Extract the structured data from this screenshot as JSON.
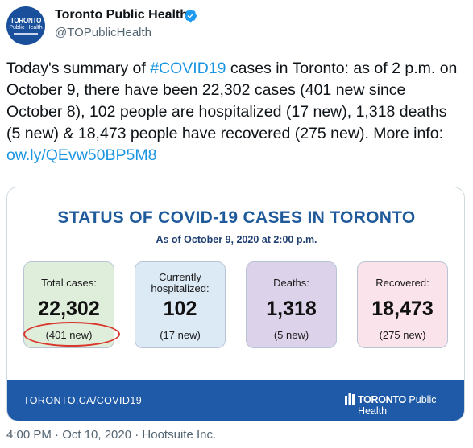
{
  "account": {
    "display_name": "Toronto Public Health",
    "handle": "@TOPublicHealth",
    "avatar_text_1": "TORONTO",
    "avatar_text_2": "Public Health"
  },
  "tweet": {
    "text_1": "Today's summary of ",
    "hashtag": "#COVID19",
    "text_2": " cases in Toronto: as of 2 p.m. on October 9, there have been 22,302 cases (401 new since October 8), 102 people are hospitalized (17 new), 1,318 deaths (5 new) & 18,473 people have recovered (275 new). More info: ",
    "link": "ow.ly/QEvw50BP5M8"
  },
  "card": {
    "title": "STATUS OF COVID-19 CASES IN TORONTO",
    "subtitle": "As of October 9, 2020 at 2:00 p.m.",
    "stats": [
      {
        "label": "Total cases:",
        "value": "22,302",
        "new": "(401 new)",
        "color": "#dfeedb"
      },
      {
        "label": "Currently hospitalized:",
        "value": "102",
        "new": "(17 new)",
        "color": "#dceaf6"
      },
      {
        "label": "Deaths:",
        "value": "1,318",
        "new": "(5 new)",
        "color": "#dcd3ea"
      },
      {
        "label": "Recovered:",
        "value": "18,473",
        "new": "(275 new)",
        "color": "#fbe3ec"
      }
    ],
    "footer_url": "TORONTO.CA/COVID19",
    "footer_logo_bold": "TORONTO",
    "footer_logo_rest": " Public Health"
  },
  "meta": {
    "timestamp": "4:00 PM · Oct 10, 2020 · Hootsuite Inc."
  },
  "colors": {
    "link": "#1b95e0",
    "title_blue": "#1f5a9b",
    "footer_blue": "#1f5aa8",
    "highlight_red": "#d9372c"
  }
}
